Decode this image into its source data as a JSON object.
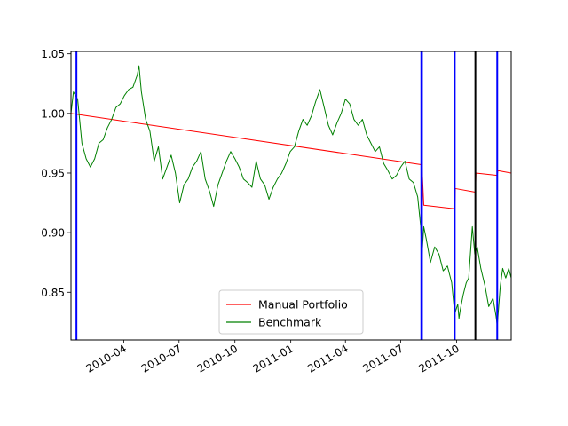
{
  "chart_data": {
    "type": "line",
    "title": "",
    "xlabel": "",
    "ylabel": "",
    "xlim": [
      "2010-01-04",
      "2011-12-30"
    ],
    "ylim": [
      0.81,
      1.052
    ],
    "grid": false,
    "legend_placement": "lower-center",
    "x_ticks": [
      "2010-04",
      "2010-07",
      "2010-10",
      "2011-01",
      "2011-04",
      "2011-07",
      "2011-10"
    ],
    "y_ticks": [
      "0.85",
      "0.90",
      "0.95",
      "1.00",
      "1.05"
    ],
    "series": [
      {
        "name": "Manual Portfolio",
        "color": "#ff0000",
        "points": [
          [
            "2010-01-04",
            1.0
          ],
          [
            "2011-08-05",
            0.957
          ],
          [
            "2011-08-08",
            0.923
          ],
          [
            "2011-09-28",
            0.92
          ],
          [
            "2011-09-29",
            0.937
          ],
          [
            "2011-11-01",
            0.934
          ],
          [
            "2011-11-02",
            0.95
          ],
          [
            "2011-12-07",
            0.948
          ],
          [
            "2011-12-08",
            0.952
          ],
          [
            "2011-12-30",
            0.95
          ]
        ]
      },
      {
        "name": "Benchmark",
        "color": "#008000",
        "points": [
          [
            "2010-01-04",
            1.0
          ],
          [
            "2010-01-08",
            1.018
          ],
          [
            "2010-01-15",
            1.012
          ],
          [
            "2010-01-22",
            0.975
          ],
          [
            "2010-01-29",
            0.962
          ],
          [
            "2010-02-05",
            0.955
          ],
          [
            "2010-02-12",
            0.962
          ],
          [
            "2010-02-19",
            0.975
          ],
          [
            "2010-02-26",
            0.978
          ],
          [
            "2010-03-05",
            0.988
          ],
          [
            "2010-03-12",
            0.995
          ],
          [
            "2010-03-19",
            1.005
          ],
          [
            "2010-03-26",
            1.008
          ],
          [
            "2010-04-02",
            1.015
          ],
          [
            "2010-04-09",
            1.02
          ],
          [
            "2010-04-16",
            1.022
          ],
          [
            "2010-04-23",
            1.032
          ],
          [
            "2010-04-26",
            1.04
          ],
          [
            "2010-04-30",
            1.018
          ],
          [
            "2010-05-07",
            0.995
          ],
          [
            "2010-05-14",
            0.985
          ],
          [
            "2010-05-21",
            0.96
          ],
          [
            "2010-05-28",
            0.972
          ],
          [
            "2010-06-04",
            0.945
          ],
          [
            "2010-06-11",
            0.955
          ],
          [
            "2010-06-18",
            0.965
          ],
          [
            "2010-06-25",
            0.95
          ],
          [
            "2010-07-02",
            0.925
          ],
          [
            "2010-07-09",
            0.94
          ],
          [
            "2010-07-16",
            0.945
          ],
          [
            "2010-07-23",
            0.955
          ],
          [
            "2010-07-30",
            0.96
          ],
          [
            "2010-08-06",
            0.968
          ],
          [
            "2010-08-13",
            0.945
          ],
          [
            "2010-08-20",
            0.935
          ],
          [
            "2010-08-27",
            0.922
          ],
          [
            "2010-09-03",
            0.94
          ],
          [
            "2010-09-10",
            0.95
          ],
          [
            "2010-09-17",
            0.96
          ],
          [
            "2010-09-24",
            0.968
          ],
          [
            "2010-10-01",
            0.962
          ],
          [
            "2010-10-08",
            0.955
          ],
          [
            "2010-10-15",
            0.945
          ],
          [
            "2010-10-22",
            0.942
          ],
          [
            "2010-10-29",
            0.938
          ],
          [
            "2010-11-05",
            0.96
          ],
          [
            "2010-11-12",
            0.945
          ],
          [
            "2010-11-19",
            0.94
          ],
          [
            "2010-11-26",
            0.928
          ],
          [
            "2010-12-03",
            0.938
          ],
          [
            "2010-12-10",
            0.945
          ],
          [
            "2010-12-17",
            0.95
          ],
          [
            "2010-12-24",
            0.958
          ],
          [
            "2010-12-31",
            0.968
          ],
          [
            "2011-01-07",
            0.972
          ],
          [
            "2011-01-14",
            0.985
          ],
          [
            "2011-01-21",
            0.995
          ],
          [
            "2011-01-28",
            0.99
          ],
          [
            "2011-02-04",
            0.998
          ],
          [
            "2011-02-11",
            1.01
          ],
          [
            "2011-02-18",
            1.02
          ],
          [
            "2011-02-25",
            1.005
          ],
          [
            "2011-03-04",
            0.99
          ],
          [
            "2011-03-11",
            0.982
          ],
          [
            "2011-03-18",
            0.992
          ],
          [
            "2011-03-25",
            1.0
          ],
          [
            "2011-04-01",
            1.012
          ],
          [
            "2011-04-08",
            1.008
          ],
          [
            "2011-04-15",
            0.995
          ],
          [
            "2011-04-22",
            0.99
          ],
          [
            "2011-04-29",
            0.995
          ],
          [
            "2011-05-06",
            0.982
          ],
          [
            "2011-05-13",
            0.975
          ],
          [
            "2011-05-20",
            0.968
          ],
          [
            "2011-05-27",
            0.972
          ],
          [
            "2011-06-03",
            0.958
          ],
          [
            "2011-06-10",
            0.952
          ],
          [
            "2011-06-17",
            0.945
          ],
          [
            "2011-06-24",
            0.948
          ],
          [
            "2011-07-01",
            0.955
          ],
          [
            "2011-07-08",
            0.96
          ],
          [
            "2011-07-15",
            0.945
          ],
          [
            "2011-07-22",
            0.942
          ],
          [
            "2011-07-29",
            0.93
          ],
          [
            "2011-08-03",
            0.905
          ],
          [
            "2011-08-05",
            0.88
          ],
          [
            "2011-08-08",
            0.905
          ],
          [
            "2011-08-12",
            0.895
          ],
          [
            "2011-08-19",
            0.875
          ],
          [
            "2011-08-26",
            0.888
          ],
          [
            "2011-09-02",
            0.882
          ],
          [
            "2011-09-09",
            0.868
          ],
          [
            "2011-09-16",
            0.872
          ],
          [
            "2011-09-23",
            0.858
          ],
          [
            "2011-09-28",
            0.832
          ],
          [
            "2011-10-03",
            0.84
          ],
          [
            "2011-10-05",
            0.828
          ],
          [
            "2011-10-07",
            0.835
          ],
          [
            "2011-10-12",
            0.848
          ],
          [
            "2011-10-17",
            0.858
          ],
          [
            "2011-10-21",
            0.862
          ],
          [
            "2011-10-27",
            0.905
          ],
          [
            "2011-10-31",
            0.882
          ],
          [
            "2011-11-04",
            0.888
          ],
          [
            "2011-11-10",
            0.87
          ],
          [
            "2011-11-17",
            0.855
          ],
          [
            "2011-11-23",
            0.838
          ],
          [
            "2011-11-30",
            0.845
          ],
          [
            "2011-12-05",
            0.83
          ],
          [
            "2011-12-07",
            0.822
          ],
          [
            "2011-12-12",
            0.855
          ],
          [
            "2011-12-16",
            0.87
          ],
          [
            "2011-12-21",
            0.862
          ],
          [
            "2011-12-26",
            0.87
          ],
          [
            "2011-12-30",
            0.862
          ]
        ]
      }
    ],
    "vertical_lines": [
      {
        "date": "2010-01-13",
        "color": "#0000ff"
      },
      {
        "date": "2011-08-04",
        "color": "#0000ff"
      },
      {
        "date": "2011-08-05",
        "color": "#0000ff"
      },
      {
        "date": "2011-09-28",
        "color": "#0000ff"
      },
      {
        "date": "2011-11-01",
        "color": "#000000"
      },
      {
        "date": "2011-12-07",
        "color": "#0000ff"
      }
    ]
  }
}
